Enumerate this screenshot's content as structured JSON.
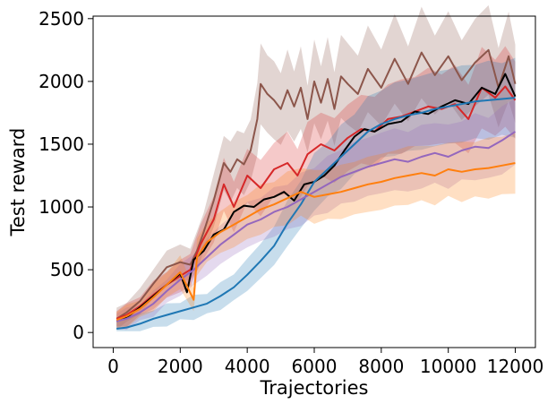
{
  "chart_data": {
    "type": "line",
    "title": "",
    "xlabel": "Trajectories",
    "ylabel": "Test reward",
    "xlim": [
      -600,
      12600
    ],
    "ylim": [
      -120,
      2520
    ],
    "xticks": [
      0,
      2000,
      4000,
      6000,
      8000,
      10000,
      12000
    ],
    "yticks": [
      0,
      500,
      1000,
      1500,
      2000,
      2500
    ],
    "xtick_labels": [
      "0",
      "2000",
      "4000",
      "6000",
      "8000",
      "10000",
      "12000"
    ],
    "ytick_labels": [
      "0",
      "500",
      "1000",
      "1500",
      "2000",
      "2500"
    ],
    "grid": false,
    "legend": "none",
    "series": [
      {
        "name": "brown",
        "color": "#8c564b",
        "band": true,
        "points": [
          [
            100,
            110
          ],
          [
            400,
            160
          ],
          [
            800,
            250
          ],
          [
            1200,
            390
          ],
          [
            1600,
            520
          ],
          [
            2000,
            560
          ],
          [
            2300,
            540
          ],
          [
            2500,
            650
          ],
          [
            2700,
            800
          ],
          [
            3000,
            1050
          ],
          [
            3300,
            1350
          ],
          [
            3500,
            1280
          ],
          [
            3700,
            1380
          ],
          [
            3900,
            1340
          ],
          [
            4100,
            1450
          ],
          [
            4300,
            1700
          ],
          [
            4400,
            1980
          ],
          [
            4600,
            1900
          ],
          [
            4800,
            1850
          ],
          [
            5000,
            1780
          ],
          [
            5200,
            1930
          ],
          [
            5400,
            1800
          ],
          [
            5600,
            1950
          ],
          [
            5800,
            1700
          ],
          [
            6000,
            2000
          ],
          [
            6200,
            1830
          ],
          [
            6400,
            2020
          ],
          [
            6600,
            1780
          ],
          [
            6800,
            2040
          ],
          [
            7000,
            1980
          ],
          [
            7300,
            1900
          ],
          [
            7600,
            2100
          ],
          [
            8000,
            1950
          ],
          [
            8400,
            2180
          ],
          [
            8800,
            1980
          ],
          [
            9200,
            2230
          ],
          [
            9600,
            2050
          ],
          [
            10000,
            2200
          ],
          [
            10400,
            2010
          ],
          [
            10800,
            2150
          ],
          [
            11200,
            2250
          ],
          [
            11500,
            1950
          ],
          [
            11800,
            2200
          ],
          [
            12000,
            1980
          ]
        ]
      },
      {
        "name": "red",
        "color": "#d62728",
        "band": true,
        "points": [
          [
            100,
            110
          ],
          [
            400,
            140
          ],
          [
            800,
            210
          ],
          [
            1200,
            300
          ],
          [
            1600,
            380
          ],
          [
            2000,
            450
          ],
          [
            2300,
            500
          ],
          [
            2600,
            700
          ],
          [
            3000,
            900
          ],
          [
            3300,
            1180
          ],
          [
            3600,
            1000
          ],
          [
            4000,
            1250
          ],
          [
            4400,
            1150
          ],
          [
            4800,
            1300
          ],
          [
            5200,
            1350
          ],
          [
            5500,
            1250
          ],
          [
            5800,
            1420
          ],
          [
            6200,
            1500
          ],
          [
            6600,
            1450
          ],
          [
            7000,
            1550
          ],
          [
            7400,
            1620
          ],
          [
            7800,
            1600
          ],
          [
            8200,
            1700
          ],
          [
            8600,
            1720
          ],
          [
            9000,
            1760
          ],
          [
            9400,
            1800
          ],
          [
            9800,
            1780
          ],
          [
            10200,
            1820
          ],
          [
            10600,
            1700
          ],
          [
            11000,
            1950
          ],
          [
            11400,
            1870
          ],
          [
            11700,
            1960
          ],
          [
            12000,
            1850
          ]
        ]
      },
      {
        "name": "black",
        "color": "#000000",
        "band": false,
        "points": [
          [
            100,
            90
          ],
          [
            400,
            120
          ],
          [
            800,
            200
          ],
          [
            1200,
            290
          ],
          [
            1600,
            380
          ],
          [
            2000,
            470
          ],
          [
            2200,
            320
          ],
          [
            2400,
            580
          ],
          [
            2700,
            650
          ],
          [
            3000,
            780
          ],
          [
            3300,
            820
          ],
          [
            3600,
            960
          ],
          [
            3900,
            1010
          ],
          [
            4200,
            1000
          ],
          [
            4500,
            1060
          ],
          [
            4800,
            1080
          ],
          [
            5100,
            1120
          ],
          [
            5400,
            1050
          ],
          [
            5700,
            1180
          ],
          [
            6000,
            1200
          ],
          [
            6300,
            1250
          ],
          [
            6600,
            1330
          ],
          [
            6900,
            1450
          ],
          [
            7200,
            1560
          ],
          [
            7500,
            1620
          ],
          [
            7800,
            1600
          ],
          [
            8200,
            1660
          ],
          [
            8600,
            1680
          ],
          [
            9000,
            1760
          ],
          [
            9400,
            1740
          ],
          [
            9800,
            1800
          ],
          [
            10200,
            1850
          ],
          [
            10600,
            1820
          ],
          [
            11000,
            1950
          ],
          [
            11400,
            1900
          ],
          [
            11700,
            2060
          ],
          [
            12000,
            1880
          ]
        ]
      },
      {
        "name": "blue",
        "color": "#1f77b4",
        "band": true,
        "points": [
          [
            100,
            30
          ],
          [
            400,
            40
          ],
          [
            800,
            70
          ],
          [
            1200,
            110
          ],
          [
            1600,
            140
          ],
          [
            2000,
            170
          ],
          [
            2400,
            200
          ],
          [
            2800,
            230
          ],
          [
            3200,
            290
          ],
          [
            3600,
            360
          ],
          [
            4000,
            460
          ],
          [
            4400,
            570
          ],
          [
            4800,
            690
          ],
          [
            5200,
            870
          ],
          [
            5600,
            1020
          ],
          [
            6000,
            1200
          ],
          [
            6400,
            1300
          ],
          [
            6800,
            1400
          ],
          [
            7200,
            1500
          ],
          [
            7600,
            1600
          ],
          [
            8000,
            1660
          ],
          [
            8400,
            1700
          ],
          [
            8800,
            1730
          ],
          [
            9200,
            1750
          ],
          [
            9600,
            1780
          ],
          [
            10000,
            1800
          ],
          [
            10400,
            1820
          ],
          [
            10800,
            1840
          ],
          [
            11200,
            1850
          ],
          [
            11600,
            1860
          ],
          [
            12000,
            1870
          ]
        ]
      },
      {
        "name": "purple",
        "color": "#9467bd",
        "band": true,
        "points": [
          [
            100,
            90
          ],
          [
            400,
            110
          ],
          [
            800,
            160
          ],
          [
            1200,
            230
          ],
          [
            1600,
            330
          ],
          [
            2000,
            420
          ],
          [
            2400,
            500
          ],
          [
            2800,
            600
          ],
          [
            3200,
            700
          ],
          [
            3600,
            780
          ],
          [
            4000,
            860
          ],
          [
            4400,
            900
          ],
          [
            4800,
            960
          ],
          [
            5200,
            1000
          ],
          [
            5600,
            1060
          ],
          [
            6000,
            1120
          ],
          [
            6400,
            1180
          ],
          [
            6800,
            1240
          ],
          [
            7200,
            1280
          ],
          [
            7600,
            1320
          ],
          [
            8000,
            1350
          ],
          [
            8400,
            1380
          ],
          [
            8800,
            1360
          ],
          [
            9200,
            1400
          ],
          [
            9600,
            1430
          ],
          [
            10000,
            1400
          ],
          [
            10400,
            1450
          ],
          [
            10800,
            1480
          ],
          [
            11200,
            1470
          ],
          [
            11600,
            1530
          ],
          [
            12000,
            1600
          ]
        ]
      },
      {
        "name": "orange",
        "color": "#ff7f0e",
        "band": true,
        "points": [
          [
            100,
            100
          ],
          [
            400,
            130
          ],
          [
            800,
            190
          ],
          [
            1200,
            280
          ],
          [
            1600,
            380
          ],
          [
            2000,
            480
          ],
          [
            2400,
            260
          ],
          [
            2500,
            600
          ],
          [
            2800,
            720
          ],
          [
            3200,
            800
          ],
          [
            3600,
            860
          ],
          [
            4000,
            920
          ],
          [
            4400,
            980
          ],
          [
            4800,
            1020
          ],
          [
            5200,
            1070
          ],
          [
            5600,
            1120
          ],
          [
            6000,
            1080
          ],
          [
            6400,
            1100
          ],
          [
            6800,
            1120
          ],
          [
            7200,
            1150
          ],
          [
            7600,
            1180
          ],
          [
            8000,
            1200
          ],
          [
            8400,
            1230
          ],
          [
            8800,
            1250
          ],
          [
            9200,
            1270
          ],
          [
            9600,
            1250
          ],
          [
            10000,
            1300
          ],
          [
            10400,
            1280
          ],
          [
            10800,
            1300
          ],
          [
            11200,
            1310
          ],
          [
            11600,
            1330
          ],
          [
            12000,
            1350
          ]
        ]
      }
    ]
  }
}
